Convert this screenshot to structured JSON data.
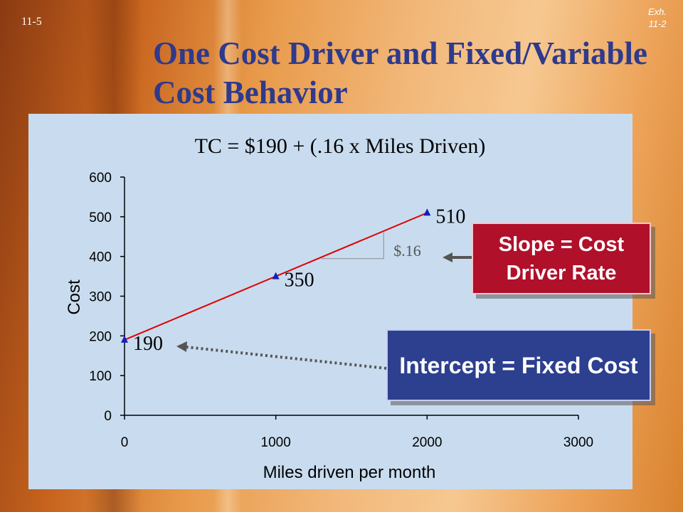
{
  "slide": {
    "number": "11-5",
    "exhibit": "Exh. 11-2",
    "title": "One Cost Driver and Fixed/Variable Cost Behavior"
  },
  "chart_data": {
    "type": "line",
    "title": "TC = $190 + (.16 x Miles Driven)",
    "xlabel": "Miles driven per month",
    "ylabel": "Cost",
    "xlim": [
      0,
      3000
    ],
    "ylim": [
      0,
      600
    ],
    "xticks": [
      0,
      1000,
      2000,
      3000
    ],
    "yticks": [
      0,
      100,
      200,
      300,
      400,
      500,
      600
    ],
    "series": [
      {
        "x": [
          0,
          1000,
          2000
        ],
        "y": [
          190,
          350,
          510
        ],
        "labels": [
          "190",
          "350",
          "510"
        ]
      }
    ],
    "annotations": {
      "slope_label": "$.16"
    },
    "colors": {
      "line": "#e00000",
      "marker": "#1020c0"
    }
  },
  "callouts": {
    "slope": "Slope = Cost Driver Rate",
    "intercept": "Intercept = Fixed Cost"
  }
}
